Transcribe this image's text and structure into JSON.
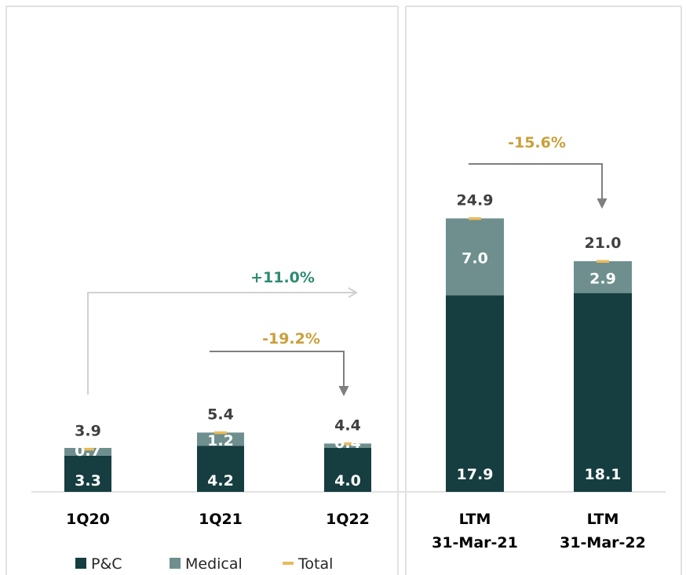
{
  "chart_data": {
    "type": "bar",
    "stacked": true,
    "title": "",
    "xlabel": "",
    "ylabel": "",
    "panels": [
      {
        "name": "quarterly",
        "categories": [
          "1Q20",
          "1Q21",
          "1Q22"
        ],
        "series": [
          {
            "name": "P&C",
            "values": [
              3.3,
              4.2,
              4.0
            ],
            "labels": [
              "3.3",
              "4.2",
              "4.0"
            ]
          },
          {
            "name": "Medical",
            "values": [
              0.7,
              1.2,
              0.4
            ],
            "labels": [
              "0.7",
              "1.2",
              "0.4"
            ]
          }
        ],
        "totals": [
          3.9,
          5.4,
          4.4
        ],
        "total_labels": [
          "3.9",
          "5.4",
          "4.4"
        ]
      },
      {
        "name": "ltm",
        "categories": [
          [
            "LTM",
            "31-Mar-21"
          ],
          [
            "LTM",
            "31-Mar-22"
          ]
        ],
        "series": [
          {
            "name": "P&C",
            "values": [
              17.9,
              18.1
            ],
            "labels": [
              "17.9",
              "18.1"
            ]
          },
          {
            "name": "Medical",
            "values": [
              7.0,
              2.9
            ],
            "labels": [
              "7.0",
              "2.9"
            ]
          }
        ],
        "totals": [
          24.9,
          21.0
        ],
        "total_labels": [
          "24.9",
          "21.0"
        ]
      }
    ],
    "annotations": [
      {
        "text": "+11.0%",
        "from": "1Q20",
        "to": "1Q22",
        "color": "#2e8b72"
      },
      {
        "text": "-19.2%",
        "from": "1Q21",
        "to": "1Q22",
        "color": "#c9a03a"
      },
      {
        "text": "-15.6%",
        "from": "LTM 31-Mar-21",
        "to": "LTM 31-Mar-22",
        "color": "#c9a03a"
      }
    ],
    "legend": {
      "position": "bottom-left",
      "items": [
        {
          "name": "P&C",
          "color": "#163d3f",
          "marker": "square"
        },
        {
          "name": "Medical",
          "color": "#6e8f8d",
          "marker": "square"
        },
        {
          "name": "Total",
          "color": "#e8bb5a",
          "marker": "dash"
        }
      ]
    },
    "grid": false
  }
}
